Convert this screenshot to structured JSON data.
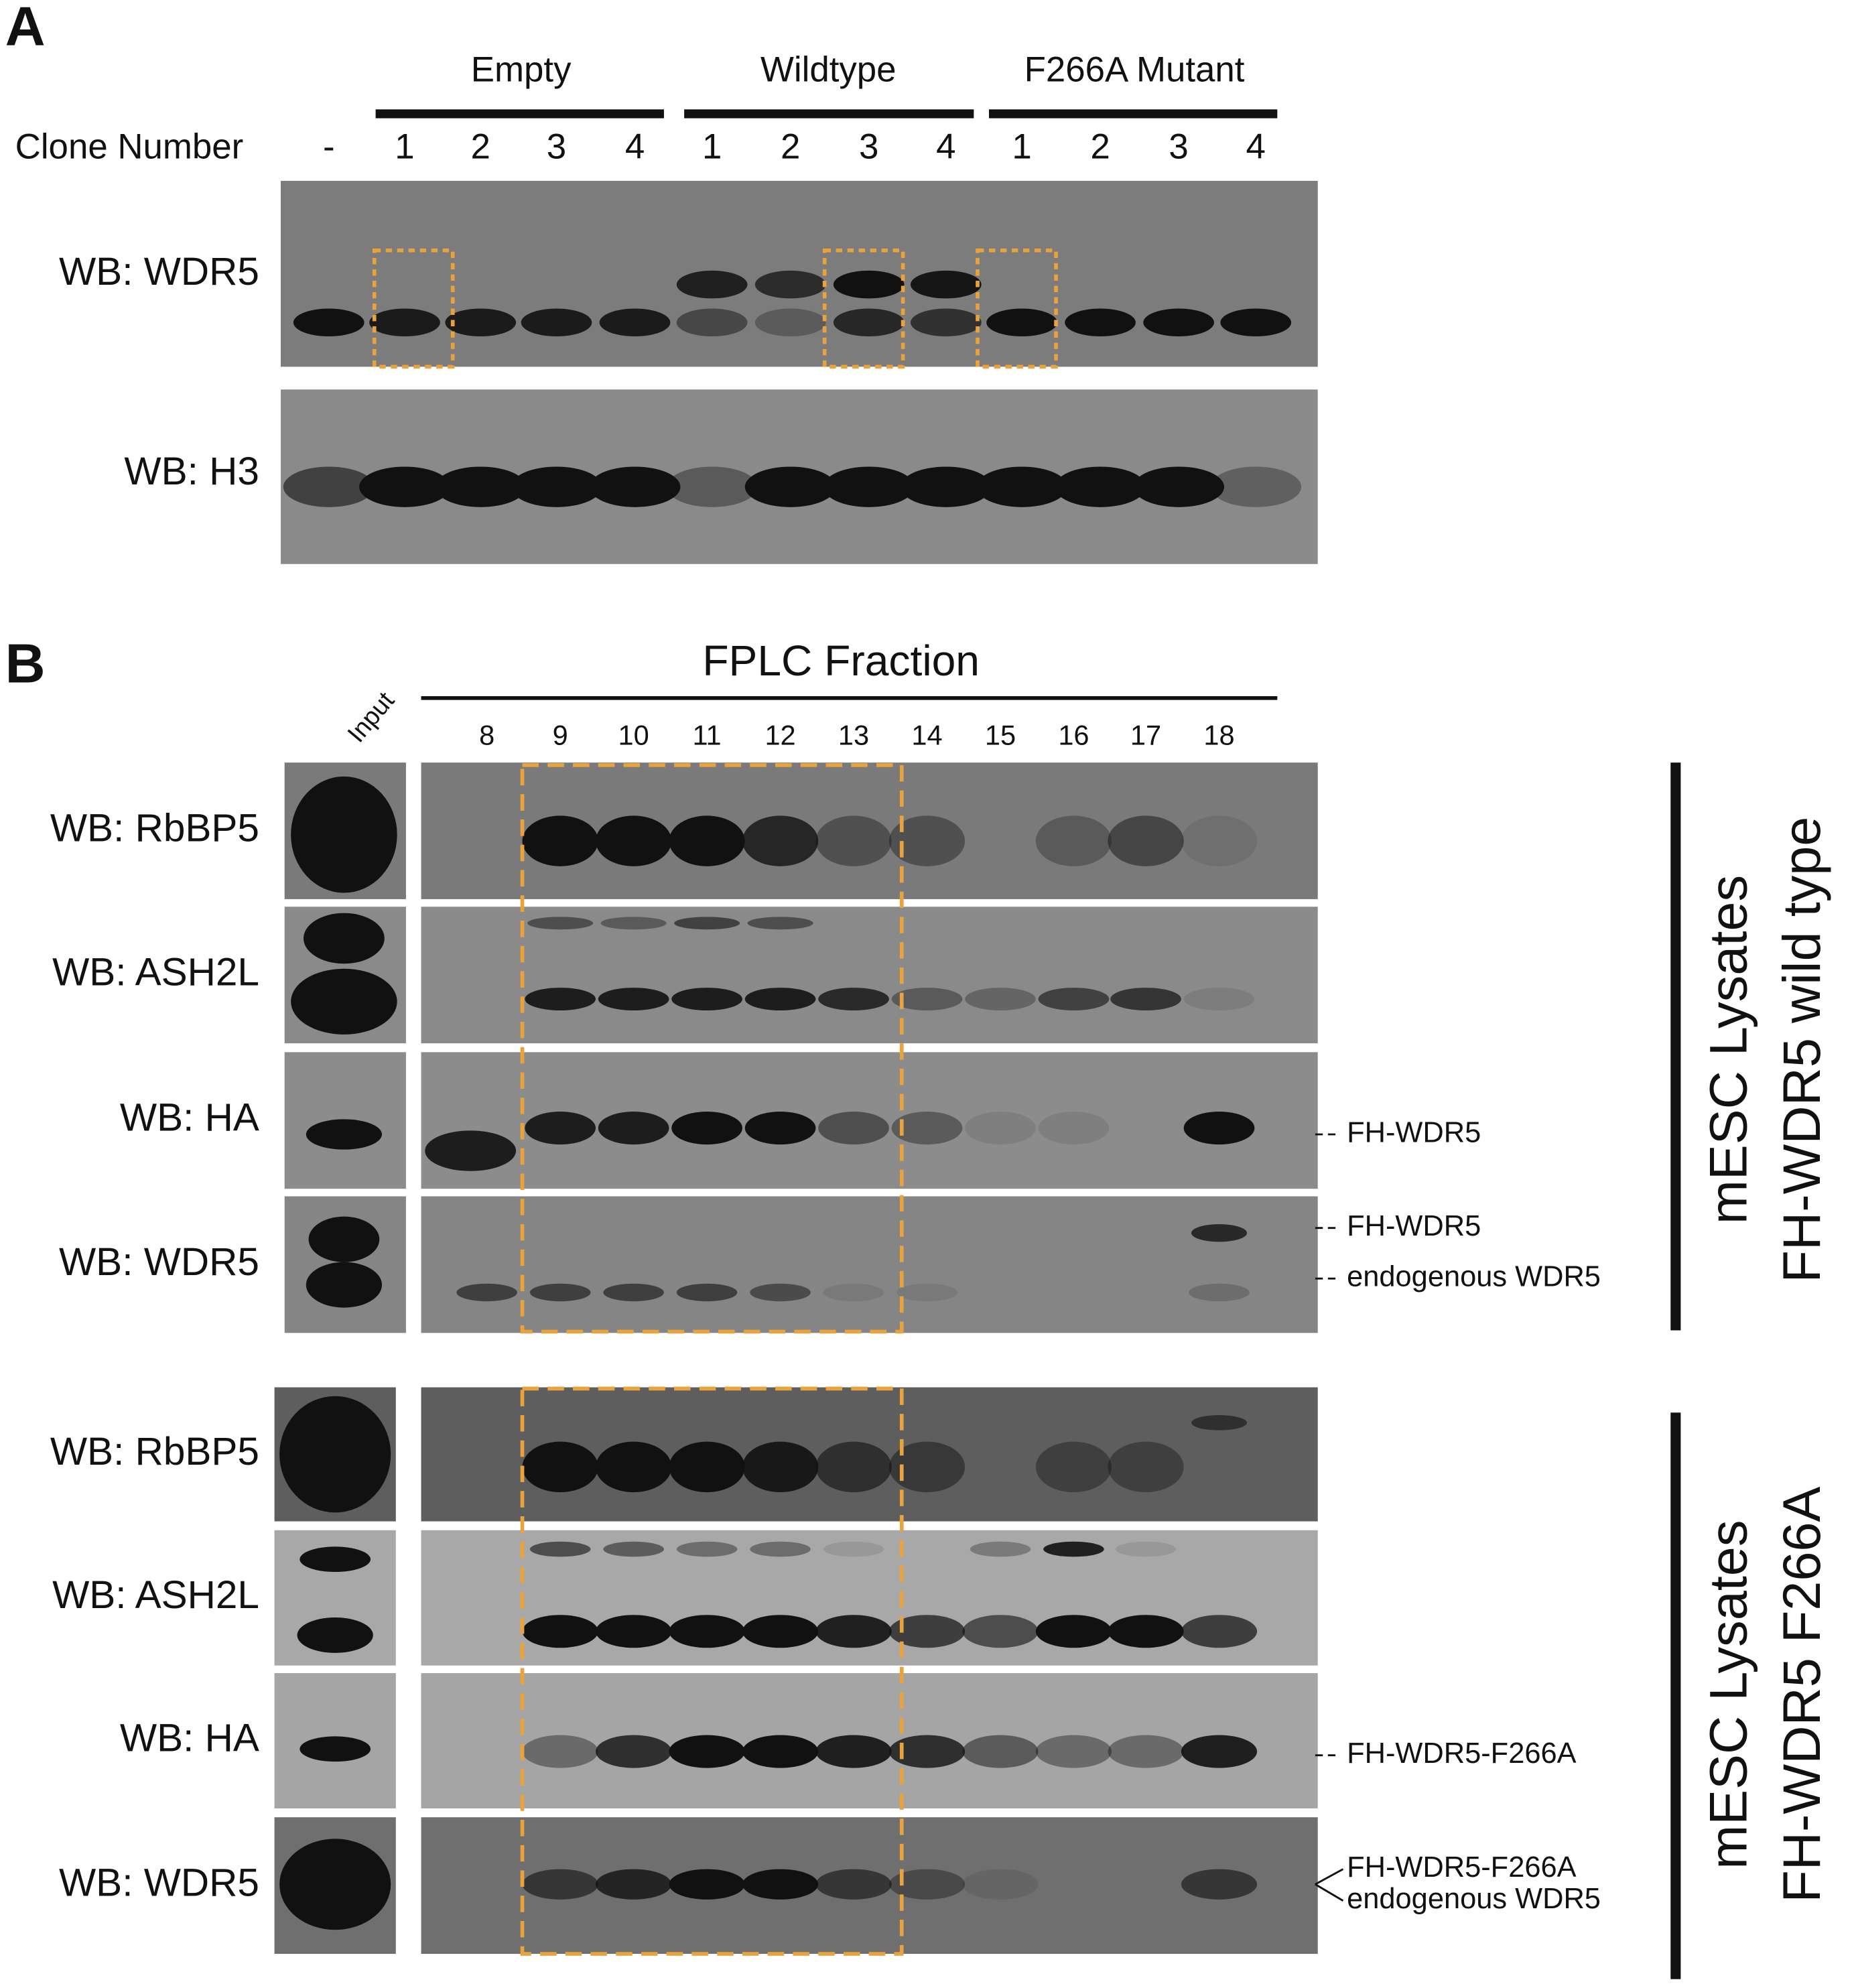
{
  "panel_a": {
    "label": "A",
    "groups": [
      "Empty",
      "Wildtype",
      "F266A Mutant"
    ],
    "row_label": "Clone Number",
    "lanes": [
      "-",
      "1",
      "2",
      "3",
      "4",
      "1",
      "2",
      "3",
      "4",
      "1",
      "2",
      "3",
      "4"
    ],
    "blots": [
      "WB: WDR5",
      "WB: H3"
    ]
  },
  "panel_b": {
    "label": "B",
    "input_label": "Input",
    "axis_title": "FPLC Fraction",
    "fractions": [
      "8",
      "9",
      "10",
      "11",
      "12",
      "13",
      "14",
      "15",
      "16",
      "17",
      "18"
    ],
    "sections": [
      {
        "title_line1": "mESC Lysates",
        "title_line2": "FH-WDR5 wild type",
        "blots": [
          "WB: RbBP5",
          "WB: ASH2L",
          "WB: HA",
          "WB: WDR5"
        ],
        "band_labels": [
          "FH-WDR5",
          "FH-WDR5",
          "endogenous WDR5"
        ]
      },
      {
        "title_line1": "mESC Lysates",
        "title_line2": "FH-WDR5 F266A",
        "blots": [
          "WB: RbBP5",
          "WB: ASH2L",
          "WB: HA",
          "WB: WDR5"
        ],
        "band_labels": [
          "FH-WDR5-F266A",
          "FH-WDR5-F266A",
          "endogenous WDR5"
        ]
      }
    ]
  }
}
